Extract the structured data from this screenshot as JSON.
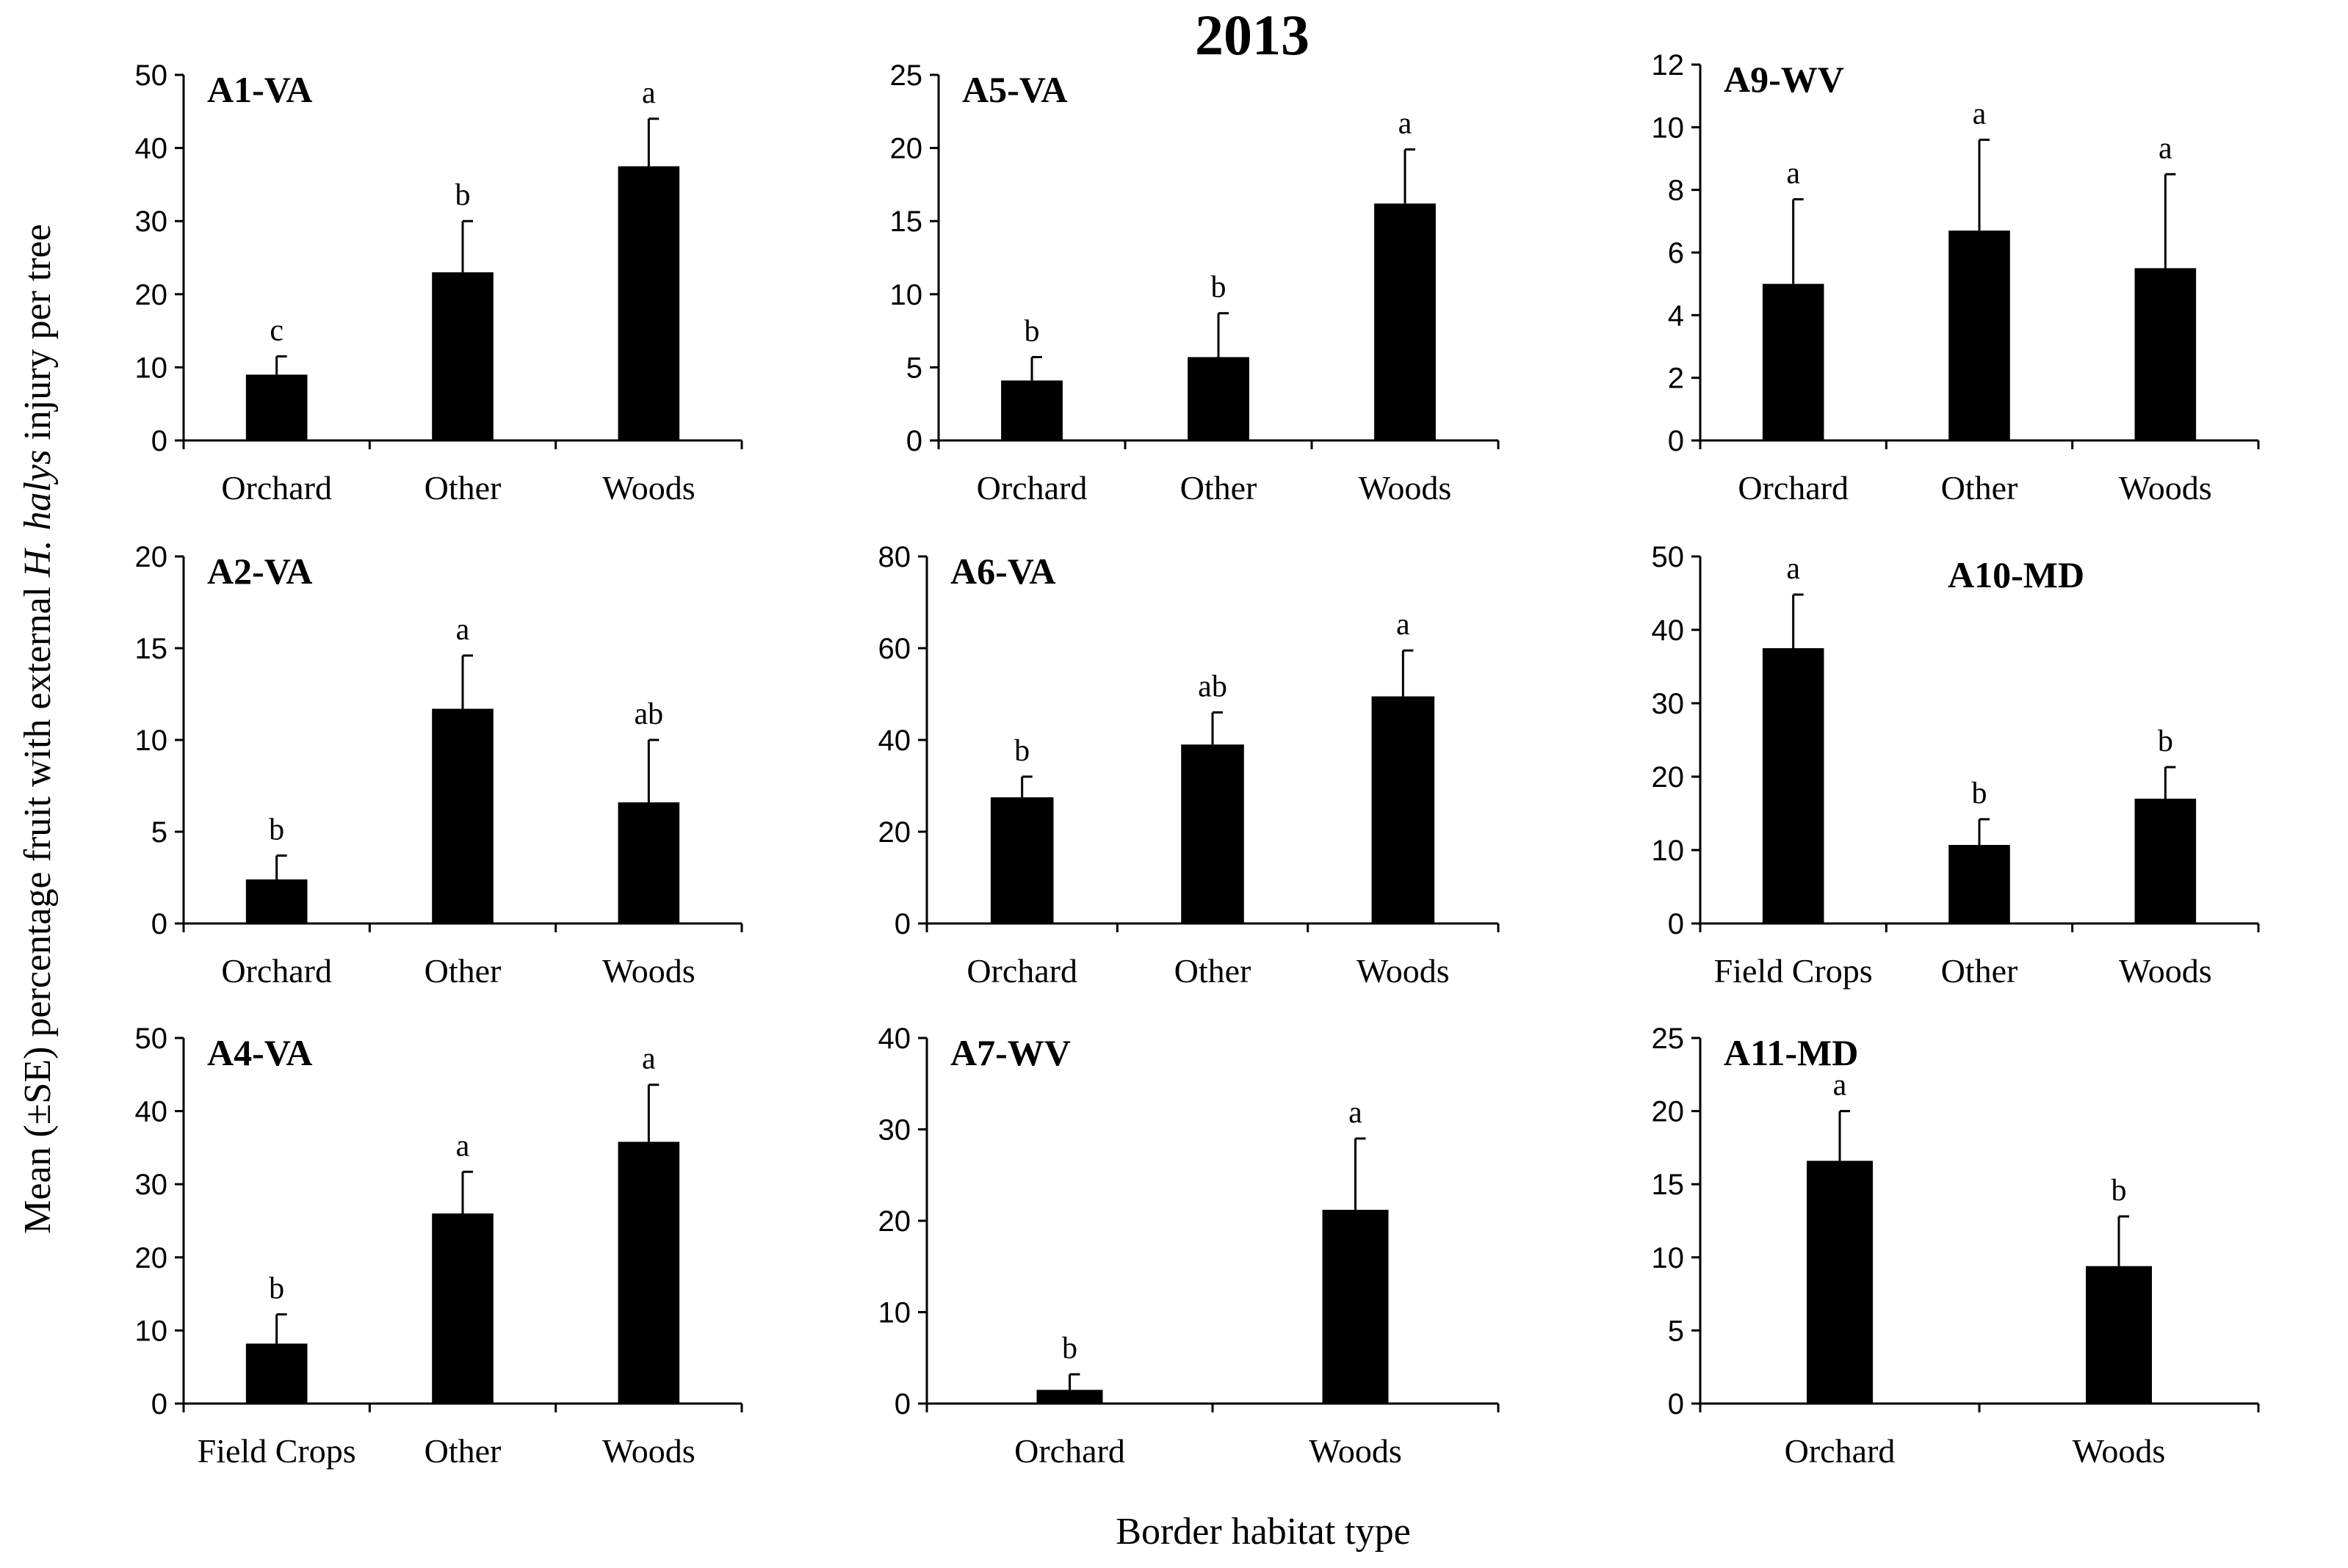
{
  "figure": {
    "title": "2013",
    "ylabel": {
      "before": "Mean (±SE) percentage fruit with external ",
      "italic": "H. halys",
      "after": " injury per tree"
    },
    "xlabel": "Border habitat type"
  },
  "chart_data": [
    {
      "type": "bar",
      "title": "A1-VA",
      "categories": [
        "Orchard",
        "Other",
        "Woods"
      ],
      "values": [
        9,
        23,
        37.5
      ],
      "errors": [
        2.5,
        7,
        6.5
      ],
      "letters": [
        "c",
        "b",
        "a"
      ],
      "ylim": [
        0,
        50
      ],
      "yticks": [
        0,
        10,
        20,
        30,
        40,
        50
      ]
    },
    {
      "type": "bar",
      "title": "A5-VA",
      "categories": [
        "Orchard",
        "Other",
        "Woods"
      ],
      "values": [
        4.1,
        5.7,
        16.2
      ],
      "errors": [
        1.6,
        3.0,
        3.7
      ],
      "letters": [
        "b",
        "b",
        "a"
      ],
      "ylim": [
        0,
        25
      ],
      "yticks": [
        0,
        5,
        10,
        15,
        20,
        25
      ]
    },
    {
      "type": "bar",
      "title": "A9-WV",
      "categories": [
        "Orchard",
        "Other",
        "Woods"
      ],
      "values": [
        5.0,
        6.7,
        5.5
      ],
      "errors": [
        2.7,
        2.9,
        3.0
      ],
      "letters": [
        "a",
        "a",
        "a"
      ],
      "ylim": [
        0,
        12
      ],
      "yticks": [
        0,
        2,
        4,
        6,
        8,
        10,
        12
      ]
    },
    {
      "type": "bar",
      "title": "A2-VA",
      "categories": [
        "Orchard",
        "Other",
        "Woods"
      ],
      "values": [
        2.4,
        11.7,
        6.6
      ],
      "errors": [
        1.3,
        2.9,
        3.4
      ],
      "letters": [
        "b",
        "a",
        "ab"
      ],
      "ylim": [
        0,
        20
      ],
      "yticks": [
        0,
        5,
        10,
        15,
        20
      ]
    },
    {
      "type": "bar",
      "title": "A6-VA",
      "categories": [
        "Orchard",
        "Other",
        "Woods"
      ],
      "values": [
        27.5,
        39,
        49.5
      ],
      "errors": [
        4.5,
        7,
        10
      ],
      "letters": [
        "b",
        "ab",
        "a"
      ],
      "ylim": [
        0,
        80
      ],
      "yticks": [
        0,
        20,
        40,
        60,
        80
      ]
    },
    {
      "type": "bar",
      "title": "A10-MD",
      "categories": [
        "Field Crops",
        "Other",
        "Woods"
      ],
      "values": [
        37.5,
        10.7,
        17
      ],
      "errors": [
        7.3,
        3.5,
        4.3
      ],
      "letters": [
        "a",
        "b",
        "b"
      ],
      "ylim": [
        0,
        50
      ],
      "yticks": [
        0,
        10,
        20,
        30,
        40,
        50
      ]
    },
    {
      "type": "bar",
      "title": "A4-VA",
      "categories": [
        "Field Crops",
        "Other",
        "Woods"
      ],
      "values": [
        8.2,
        26,
        35.8
      ],
      "errors": [
        4,
        5.7,
        7.8
      ],
      "letters": [
        "b",
        "a",
        "a"
      ],
      "ylim": [
        0,
        50
      ],
      "yticks": [
        0,
        10,
        20,
        30,
        40,
        50
      ]
    },
    {
      "type": "bar",
      "title": "A7-WV",
      "categories": [
        "Orchard",
        "Woods"
      ],
      "values": [
        1.5,
        21.2
      ],
      "errors": [
        1.7,
        7.8
      ],
      "letters": [
        "b",
        "a"
      ],
      "ylim": [
        0,
        40
      ],
      "yticks": [
        0,
        10,
        20,
        30,
        40
      ]
    },
    {
      "type": "bar",
      "title": "A11-MD",
      "categories": [
        "Orchard",
        "Woods"
      ],
      "values": [
        16.6,
        9.4
      ],
      "errors": [
        3.4,
        3.4
      ],
      "letters": [
        "a",
        "b"
      ],
      "ylim": [
        0,
        25
      ],
      "yticks": [
        0,
        5,
        10,
        15,
        20,
        25
      ]
    }
  ]
}
